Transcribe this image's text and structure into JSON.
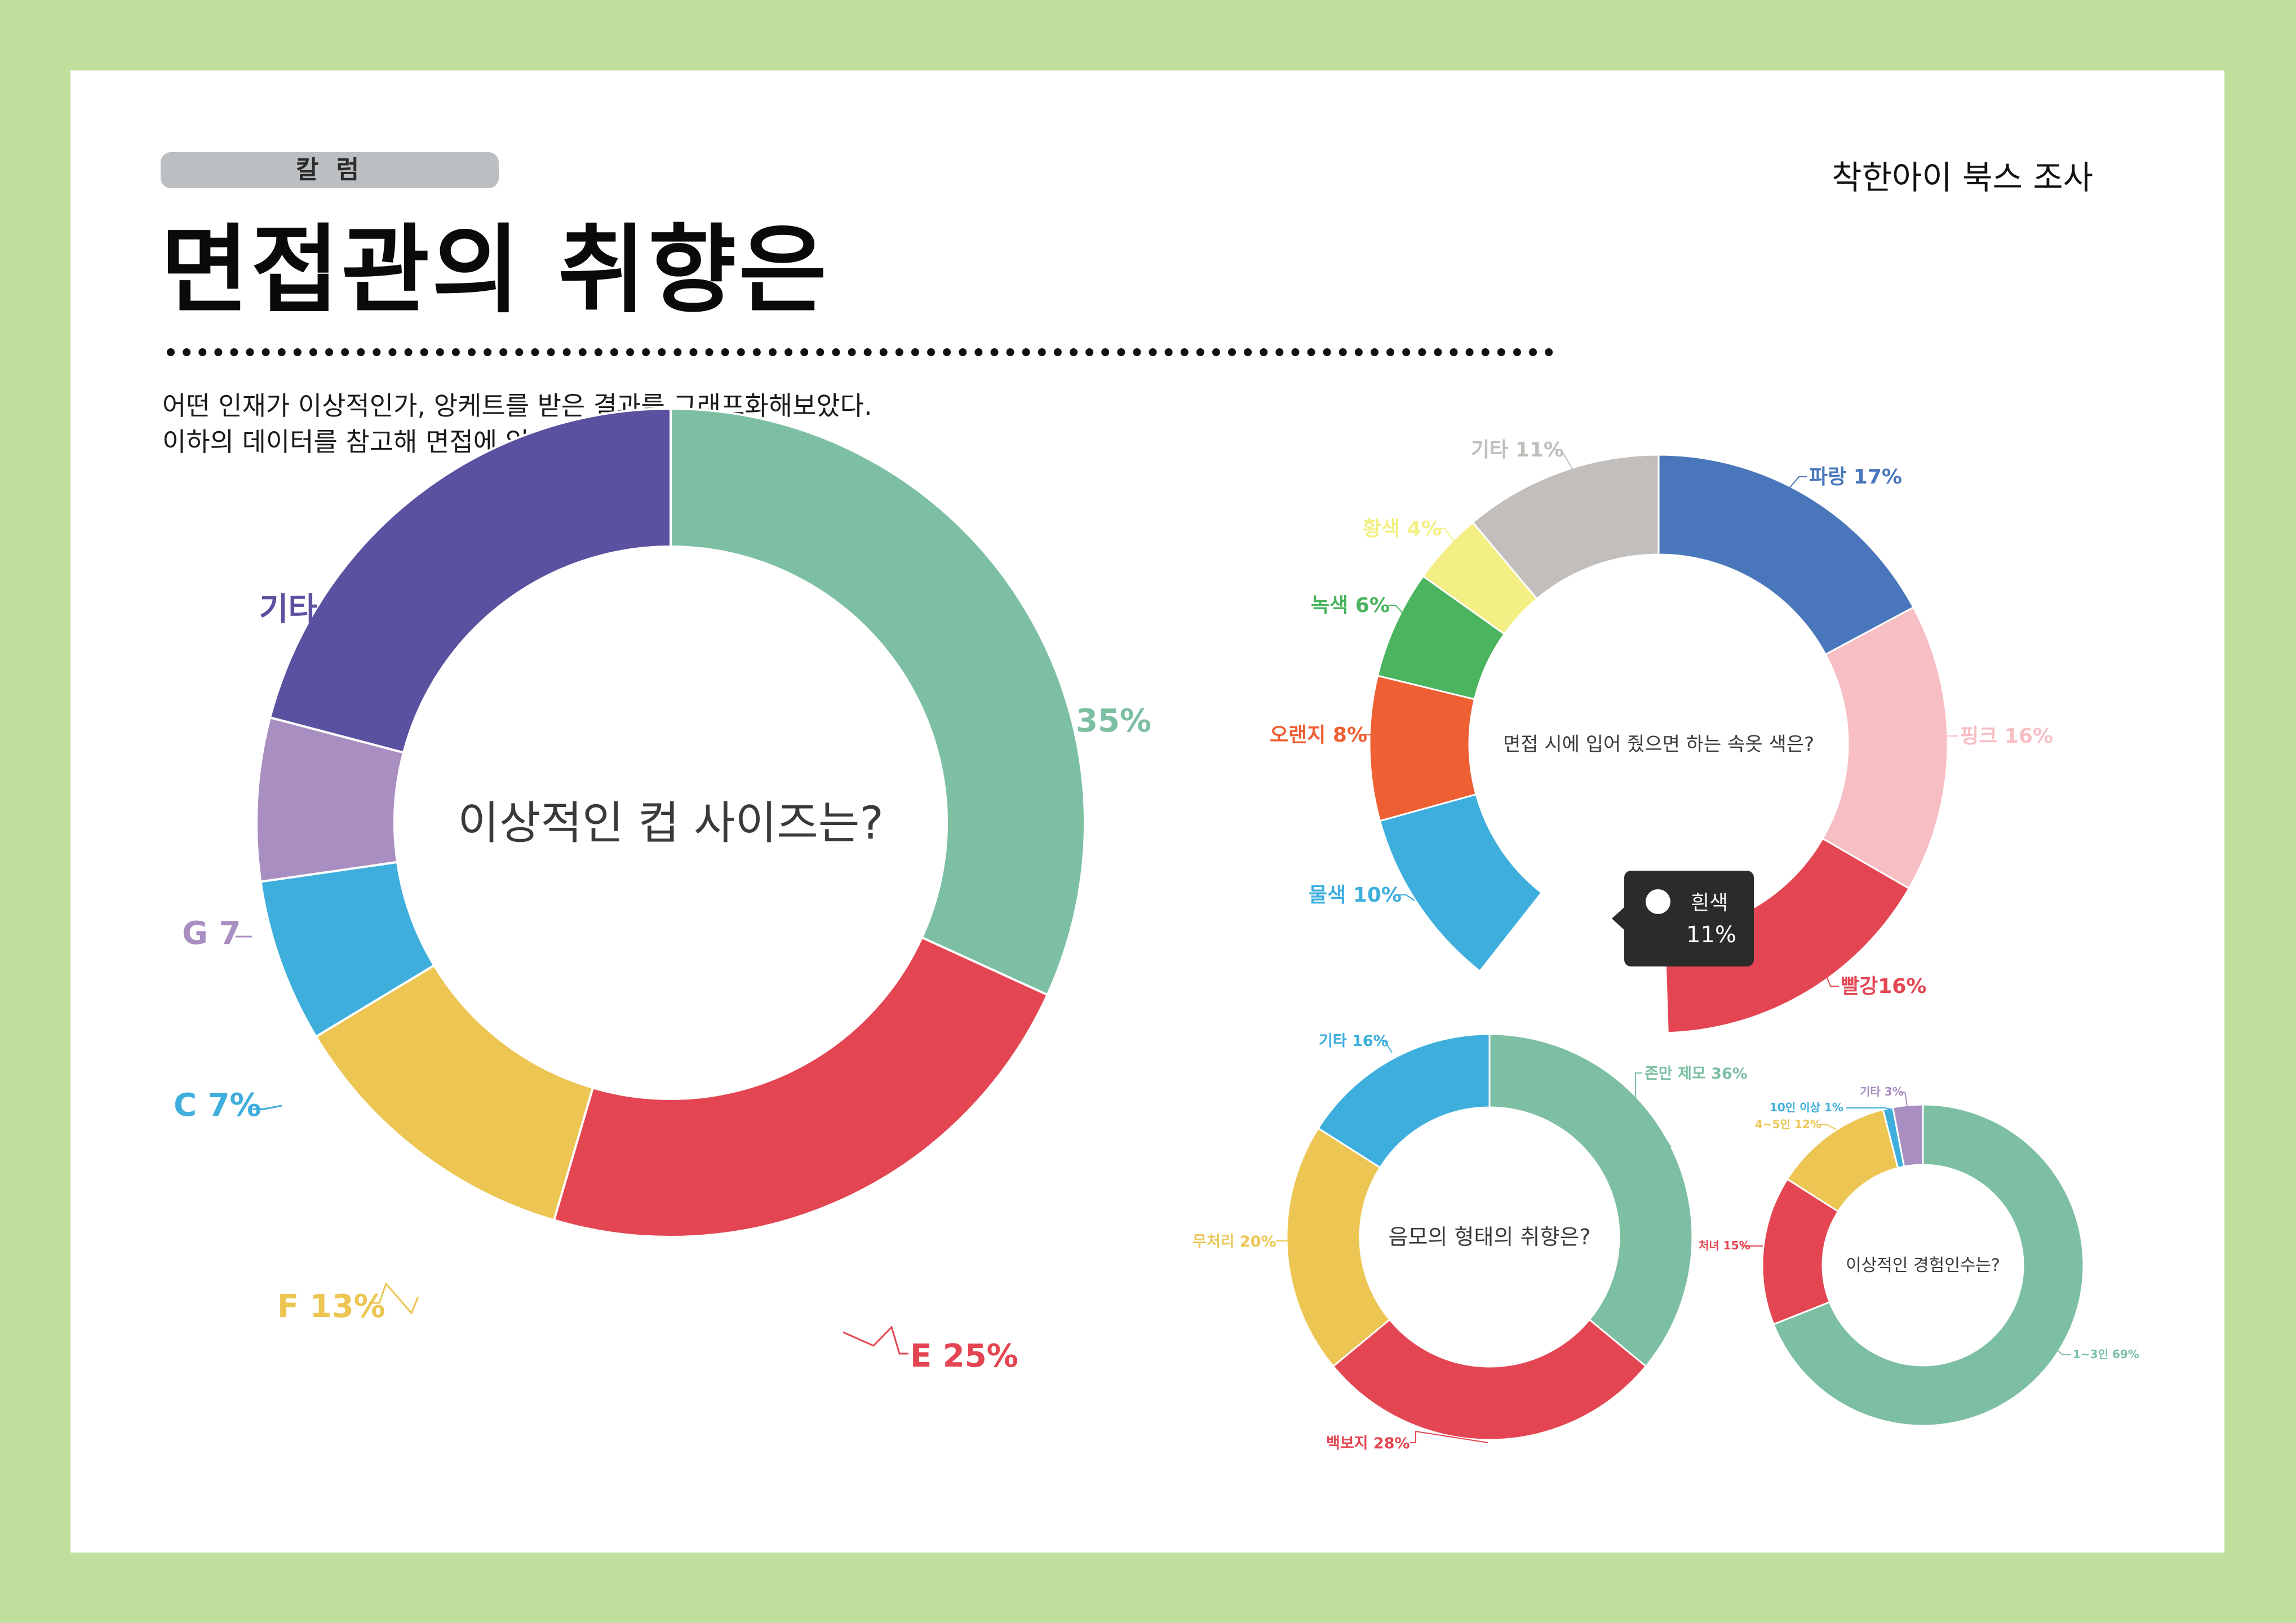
{
  "header": {
    "badge": "칼 럼",
    "org": "착한아이 북스 조사",
    "title": "면접관의 취향은",
    "intro_line1": "어떤 인재가 이상적인가, 앙케트를 받은 결과를 그래프화해보았다.",
    "intro_line2": "이하의 데이터를 참고해 면접에 임하자."
  },
  "tooltip": {
    "label": "흰색",
    "value": "11%"
  },
  "chart_data": [
    {
      "type": "pie",
      "title": "이상적인 컵 사이즈는?",
      "slices": [
        {
          "label": "D",
          "value": 35,
          "display": "D 35%",
          "color": "#7dbfa3"
        },
        {
          "label": "E",
          "value": 25,
          "display": "E 25%",
          "color": "#e34652"
        },
        {
          "label": "F",
          "value": 13,
          "display": "F 13%",
          "color": "#ecc553"
        },
        {
          "label": "C",
          "value": 7,
          "display": "C 7%",
          "color": "#3eaedd"
        },
        {
          "label": "G",
          "value": 7,
          "display": "G 7",
          "color": "#a98ec1"
        },
        {
          "label": "기타",
          "value": 23,
          "display": "기타  23%",
          "color": "#5a51a0"
        }
      ]
    },
    {
      "type": "pie",
      "title": "면접 시에 입어 줬으면 하는 속옷 색은?",
      "slices": [
        {
          "label": "파랑",
          "value": 17,
          "display": "파랑 17%",
          "color": "#4a77bb"
        },
        {
          "label": "핑크",
          "value": 16,
          "display": "핑크 16%",
          "color": "#f7bfc4"
        },
        {
          "label": "빨강",
          "value": 16,
          "display": "빨강16%",
          "color": "#e34652"
        },
        {
          "label": "흰색",
          "value": 11,
          "display": "",
          "color": "#ffffff"
        },
        {
          "label": "물색",
          "value": 10,
          "display": "물색 10%",
          "color": "#3eaedd"
        },
        {
          "label": "오렌지",
          "value": 8,
          "display": "오랜지 8%",
          "color": "#ef5f34"
        },
        {
          "label": "녹색",
          "value": 6,
          "display": "녹색 6%",
          "color": "#4bb45f"
        },
        {
          "label": "황색",
          "value": 4,
          "display": "황색 4%",
          "color": "#f3ef85"
        },
        {
          "label": "기타",
          "value": 11,
          "display": "기타 11%",
          "color": "#c2bebb"
        }
      ]
    },
    {
      "type": "pie",
      "title": "음모의 형태의 취향은?",
      "slices": [
        {
          "label": "존만 제모",
          "value": 36,
          "display": "존만 제모 36%",
          "color": "#7dbfa3"
        },
        {
          "label": "백보지",
          "value": 28,
          "display": "백보지 28%",
          "color": "#e34652"
        },
        {
          "label": "무처리",
          "value": 20,
          "display": "무처리 20%",
          "color": "#ecc553"
        },
        {
          "label": "기타",
          "value": 16,
          "display": "기타 16%",
          "color": "#3eaedd"
        }
      ]
    },
    {
      "type": "pie",
      "title": "이상적인 경험인수는?",
      "slices": [
        {
          "label": "1~3인",
          "value": 69,
          "display": "1~3인 69%",
          "color": "#7dbfa3"
        },
        {
          "label": "처녀",
          "value": 15,
          "display": "처녀 15%",
          "color": "#e34652"
        },
        {
          "label": "4~5인",
          "value": 12,
          "display": "4~5인 12%",
          "color": "#ecc553"
        },
        {
          "label": "10인 이상",
          "value": 1,
          "display": "10인 이상 1%",
          "color": "#3eaedd"
        },
        {
          "label": "기타",
          "value": 3,
          "display": "기타 3%",
          "color": "#a98ec1"
        }
      ]
    }
  ]
}
